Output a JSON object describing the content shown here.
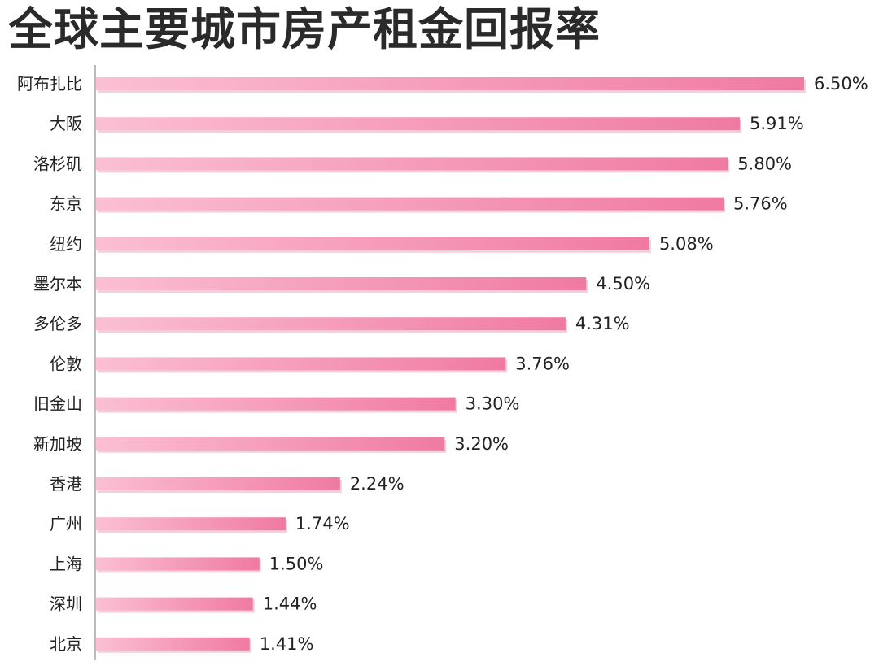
{
  "chart_data": {
    "type": "bar",
    "orientation": "horizontal",
    "title": "全球主要城市房产租金回报率",
    "xlabel": "",
    "ylabel": "",
    "xlim": [
      0,
      6.5
    ],
    "grid": false,
    "legend": "none",
    "categories": [
      "阿布扎比",
      "大阪",
      "洛杉矶",
      "东京",
      "纽约",
      "墨尔本",
      "多伦多",
      "伦敦",
      "旧金山",
      "新加坡",
      "香港",
      "广州",
      "上海",
      "深圳",
      "北京"
    ],
    "values": [
      6.5,
      5.91,
      5.8,
      5.76,
      5.08,
      4.5,
      4.31,
      3.76,
      3.3,
      3.2,
      2.24,
      1.74,
      1.5,
      1.44,
      1.41
    ],
    "value_labels": [
      "6.50%",
      "5.91%",
      "5.80%",
      "5.76%",
      "5.08%",
      "4.50%",
      "4.31%",
      "3.76%",
      "3.30%",
      "3.20%",
      "2.24%",
      "1.74%",
      "1.50%",
      "1.44%",
      "1.41%"
    ]
  },
  "colors": {
    "bar_light": "#fbbfd3",
    "bar_dark": "#f07aa2",
    "bar_shadow": "#e8a3b9",
    "axis": "#bbbbbb",
    "text": "#222222"
  }
}
